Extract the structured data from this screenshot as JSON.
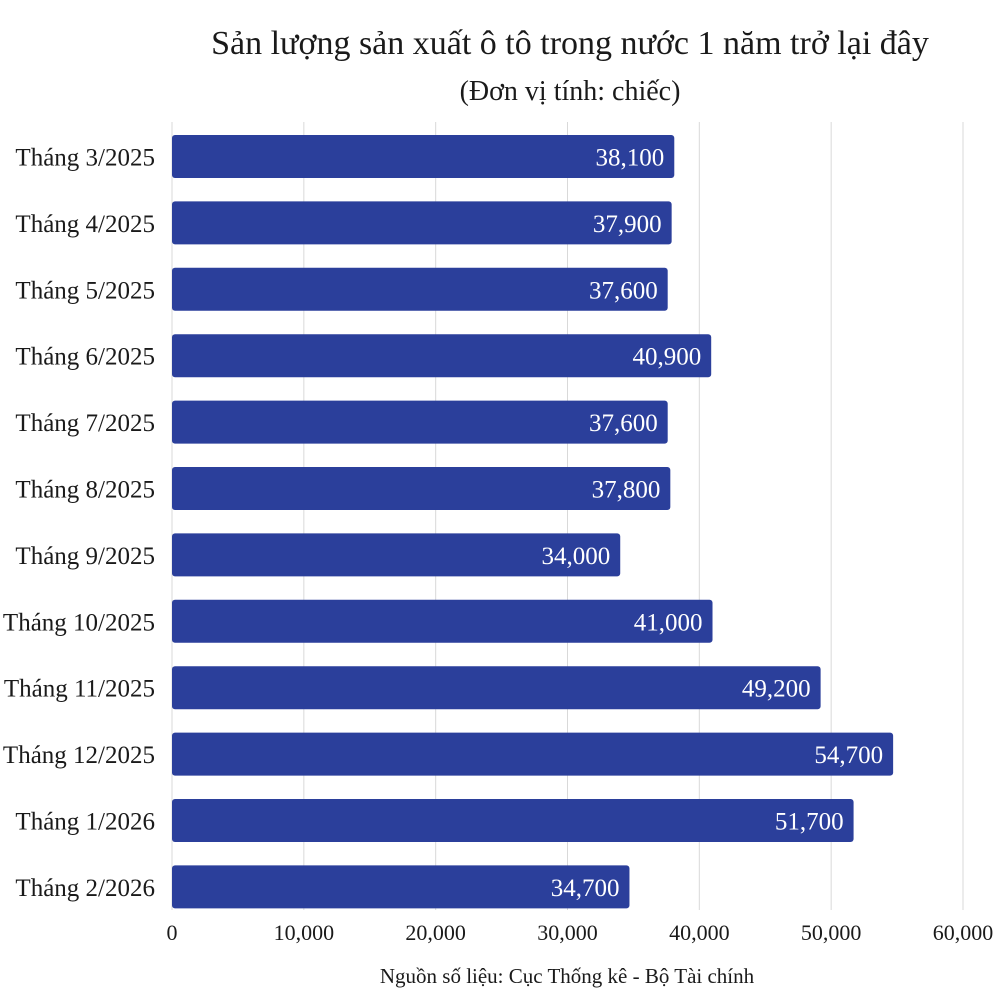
{
  "chart_data": {
    "type": "bar",
    "orientation": "horizontal",
    "title": "Sản lượng sản xuất ô tô trong nước 1 năm trở lại đây",
    "subtitle": "(Đơn vị tính: chiếc)",
    "categories": [
      "Tháng 3/2025",
      "Tháng 4/2025",
      "Tháng 5/2025",
      "Tháng 6/2025",
      "Tháng 7/2025",
      "Tháng 8/2025",
      "Tháng 9/2025",
      "Tháng 10/2025",
      "Tháng 11/2025",
      "Tháng 12/2025",
      "Tháng 1/2026",
      "Tháng 2/2026"
    ],
    "values": [
      38100,
      37900,
      37600,
      40900,
      37600,
      37800,
      34000,
      41000,
      49200,
      54700,
      51700,
      34700
    ],
    "data_labels": [
      "38,100",
      "37,900",
      "37,600",
      "40,900",
      "37,600",
      "37,800",
      "34,000",
      "41,000",
      "49,200",
      "54,700",
      "51,700",
      "34,700"
    ],
    "xlim": [
      0,
      60000
    ],
    "xticks": [
      0,
      10000,
      20000,
      30000,
      40000,
      50000,
      60000
    ],
    "xtick_labels": [
      "0",
      "10,000",
      "20,000",
      "30,000",
      "40,000",
      "50,000",
      "60,000"
    ],
    "grid": true,
    "bar_color": "#2b3f9b",
    "source": "Nguồn số liệu: Cục Thống kê - Bộ Tài chính"
  }
}
